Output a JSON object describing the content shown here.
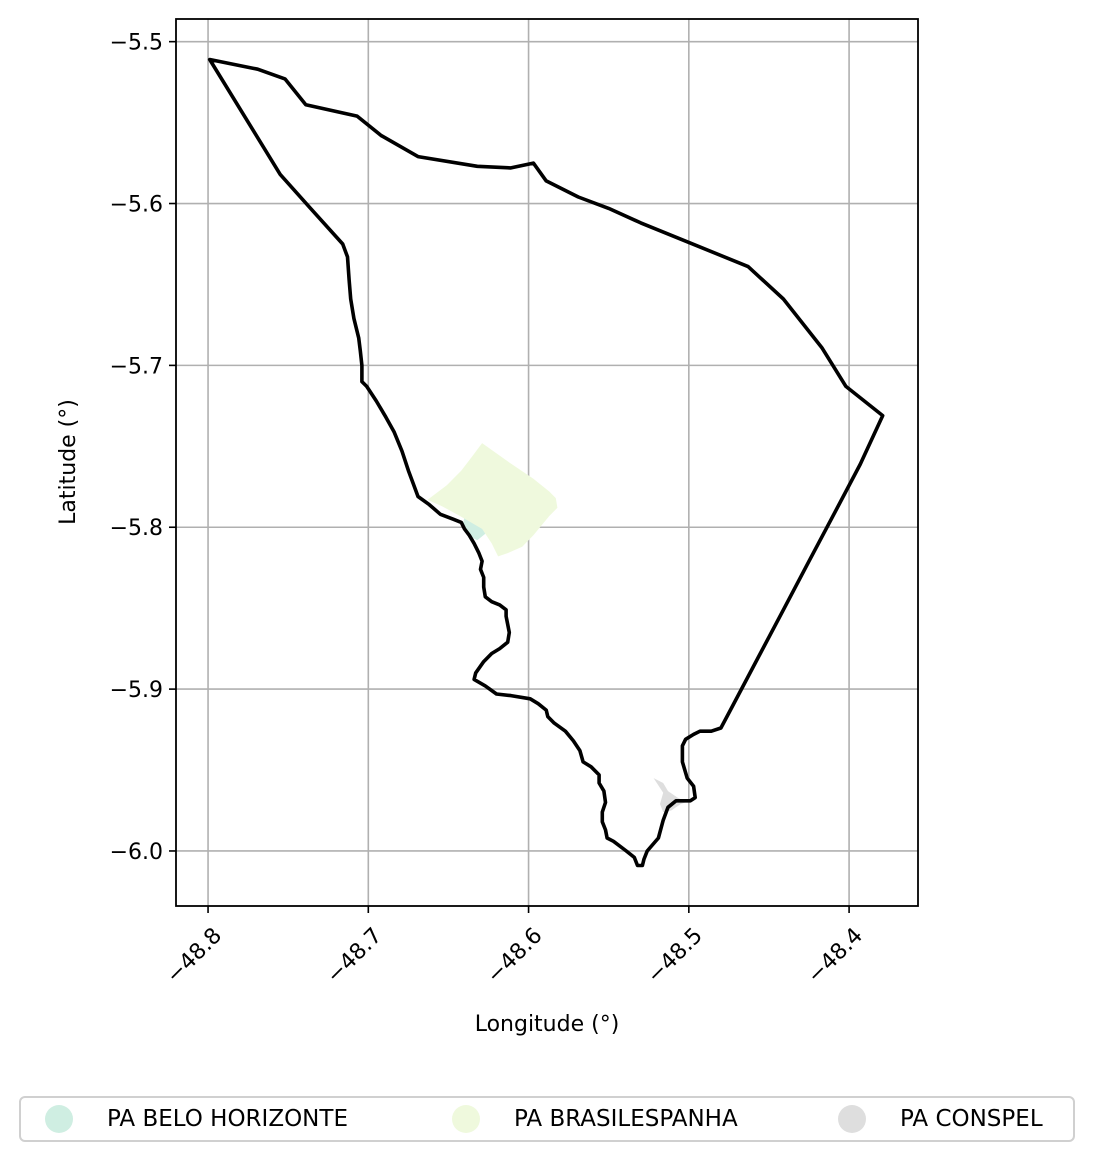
{
  "chart_data": {
    "type": "map",
    "xlabel": "Longitude (°)",
    "ylabel": "Latitude (°)",
    "xlim": [
      -48.82,
      -48.357
    ],
    "ylim": [
      -6.034,
      -5.486
    ],
    "xticks": [
      {
        "value": -48.8,
        "label": "−48.8"
      },
      {
        "value": -48.7,
        "label": "−48.7"
      },
      {
        "value": -48.6,
        "label": "−48.6"
      },
      {
        "value": -48.5,
        "label": "−48.5"
      },
      {
        "value": -48.4,
        "label": "−48.4"
      }
    ],
    "yticks": [
      {
        "value": -5.5,
        "label": "−5.5"
      },
      {
        "value": -5.6,
        "label": "−5.6"
      },
      {
        "value": -5.7,
        "label": "−5.7"
      },
      {
        "value": -5.8,
        "label": "−5.8"
      },
      {
        "value": -5.9,
        "label": "−5.9"
      },
      {
        "value": -6.0,
        "label": "−6.0"
      }
    ],
    "grid": true,
    "legend_position": "bottom",
    "boundary": {
      "color": "#000000",
      "coords": [
        [
          -48.799,
          -5.511
        ],
        [
          -48.769,
          -5.517
        ],
        [
          -48.752,
          -5.523
        ],
        [
          -48.739,
          -5.539
        ],
        [
          -48.707,
          -5.546
        ],
        [
          -48.692,
          -5.558
        ],
        [
          -48.669,
          -5.571
        ],
        [
          -48.632,
          -5.577
        ],
        [
          -48.611,
          -5.578
        ],
        [
          -48.597,
          -5.575
        ],
        [
          -48.589,
          -5.586
        ],
        [
          -48.569,
          -5.596
        ],
        [
          -48.55,
          -5.603
        ],
        [
          -48.53,
          -5.612
        ],
        [
          -48.5,
          -5.624
        ],
        [
          -48.463,
          -5.639
        ],
        [
          -48.441,
          -5.659
        ],
        [
          -48.417,
          -5.689
        ],
        [
          -48.402,
          -5.713
        ],
        [
          -48.379,
          -5.731
        ],
        [
          -48.393,
          -5.761
        ],
        [
          -48.409,
          -5.791
        ],
        [
          -48.425,
          -5.821
        ],
        [
          -48.441,
          -5.851
        ],
        [
          -48.457,
          -5.881
        ],
        [
          -48.473,
          -5.911
        ],
        [
          -48.48,
          -5.924
        ],
        [
          -48.486,
          -5.926
        ],
        [
          -48.493,
          -5.926
        ],
        [
          -48.497,
          -5.928
        ],
        [
          -48.502,
          -5.931
        ],
        [
          -48.504,
          -5.935
        ],
        [
          -48.504,
          -5.945
        ],
        [
          -48.501,
          -5.955
        ],
        [
          -48.497,
          -5.96
        ],
        [
          -48.496,
          -5.967
        ],
        [
          -48.499,
          -5.969
        ],
        [
          -48.508,
          -5.969
        ],
        [
          -48.513,
          -5.973
        ],
        [
          -48.516,
          -5.981
        ],
        [
          -48.519,
          -5.992
        ],
        [
          -48.526,
          -6.0
        ],
        [
          -48.528,
          -6.005
        ],
        [
          -48.529,
          -6.009
        ],
        [
          -48.532,
          -6.009
        ],
        [
          -48.534,
          -6.004
        ],
        [
          -48.539,
          -6.0
        ],
        [
          -48.547,
          -5.994
        ],
        [
          -48.551,
          -5.992
        ],
        [
          -48.552,
          -5.987
        ],
        [
          -48.554,
          -5.982
        ],
        [
          -48.554,
          -5.976
        ],
        [
          -48.552,
          -5.97
        ],
        [
          -48.553,
          -5.963
        ],
        [
          -48.556,
          -5.958
        ],
        [
          -48.556,
          -5.953
        ],
        [
          -48.561,
          -5.948
        ],
        [
          -48.566,
          -5.945
        ],
        [
          -48.568,
          -5.938
        ],
        [
          -48.572,
          -5.932
        ],
        [
          -48.577,
          -5.926
        ],
        [
          -48.584,
          -5.921
        ],
        [
          -48.588,
          -5.917
        ],
        [
          -48.589,
          -5.913
        ],
        [
          -48.594,
          -5.909
        ],
        [
          -48.599,
          -5.906
        ],
        [
          -48.611,
          -5.904
        ],
        [
          -48.62,
          -5.903
        ],
        [
          -48.627,
          -5.898
        ],
        [
          -48.634,
          -5.894
        ],
        [
          -48.633,
          -5.89
        ],
        [
          -48.628,
          -5.883
        ],
        [
          -48.623,
          -5.878
        ],
        [
          -48.618,
          -5.875
        ],
        [
          -48.613,
          -5.871
        ],
        [
          -48.612,
          -5.865
        ],
        [
          -48.613,
          -5.86
        ],
        [
          -48.614,
          -5.855
        ],
        [
          -48.614,
          -5.851
        ],
        [
          -48.618,
          -5.848
        ],
        [
          -48.623,
          -5.846
        ],
        [
          -48.627,
          -5.843
        ],
        [
          -48.628,
          -5.837
        ],
        [
          -48.628,
          -5.831
        ],
        [
          -48.63,
          -5.826
        ],
        [
          -48.629,
          -5.821
        ],
        [
          -48.631,
          -5.816
        ],
        [
          -48.634,
          -5.81
        ],
        [
          -48.637,
          -5.805
        ],
        [
          -48.64,
          -5.801
        ],
        [
          -48.642,
          -5.797
        ],
        [
          -48.647,
          -5.795
        ],
        [
          -48.655,
          -5.792
        ],
        [
          -48.662,
          -5.786
        ],
        [
          -48.669,
          -5.781
        ],
        [
          -48.672,
          -5.773
        ],
        [
          -48.675,
          -5.765
        ],
        [
          -48.679,
          -5.753
        ],
        [
          -48.684,
          -5.741
        ],
        [
          -48.689,
          -5.732
        ],
        [
          -48.695,
          -5.722
        ],
        [
          -48.701,
          -5.713
        ],
        [
          -48.704,
          -5.71
        ],
        [
          -48.704,
          -5.7
        ],
        [
          -48.705,
          -5.691
        ],
        [
          -48.706,
          -5.683
        ],
        [
          -48.709,
          -5.671
        ],
        [
          -48.711,
          -5.659
        ],
        [
          -48.712,
          -5.647
        ],
        [
          -48.713,
          -5.633
        ],
        [
          -48.716,
          -5.625
        ],
        [
          -48.736,
          -5.603
        ],
        [
          -48.755,
          -5.582
        ],
        [
          -48.799,
          -5.511
        ]
      ]
    },
    "areas": [
      {
        "name": "PA BELO HORIZONTE",
        "color": "#cfeee2",
        "coords": [
          [
            -48.64,
            -5.793
          ],
          [
            -48.635,
            -5.792
          ],
          [
            -48.63,
            -5.798
          ],
          [
            -48.627,
            -5.804
          ],
          [
            -48.632,
            -5.808
          ],
          [
            -48.638,
            -5.805
          ],
          [
            -48.641,
            -5.799
          ]
        ]
      },
      {
        "name": "PA BRASILESPANHA",
        "color": "#eff9dd",
        "coords": [
          [
            -48.629,
            -5.748
          ],
          [
            -48.612,
            -5.76
          ],
          [
            -48.597,
            -5.77
          ],
          [
            -48.587,
            -5.778
          ],
          [
            -48.583,
            -5.782
          ],
          [
            -48.582,
            -5.788
          ],
          [
            -48.587,
            -5.793
          ],
          [
            -48.597,
            -5.805
          ],
          [
            -48.604,
            -5.812
          ],
          [
            -48.613,
            -5.816
          ],
          [
            -48.619,
            -5.818
          ],
          [
            -48.623,
            -5.81
          ],
          [
            -48.629,
            -5.801
          ],
          [
            -48.643,
            -5.793
          ],
          [
            -48.654,
            -5.787
          ],
          [
            -48.663,
            -5.783
          ],
          [
            -48.651,
            -5.774
          ],
          [
            -48.642,
            -5.765
          ],
          [
            -48.635,
            -5.756
          ]
        ]
      },
      {
        "name": "PA CONSPEL",
        "color": "#dedede",
        "coords": [
          [
            -48.522,
            -5.955
          ],
          [
            -48.516,
            -5.958
          ],
          [
            -48.513,
            -5.963
          ],
          [
            -48.507,
            -5.967
          ],
          [
            -48.503,
            -5.969
          ],
          [
            -48.499,
            -5.969
          ],
          [
            -48.505,
            -5.971
          ],
          [
            -48.511,
            -5.975
          ],
          [
            -48.516,
            -5.976
          ],
          [
            -48.518,
            -5.971
          ],
          [
            -48.516,
            -5.964
          ]
        ]
      }
    ],
    "legend": [
      {
        "label": "PA BELO HORIZONTE",
        "color": "#cfeee2"
      },
      {
        "label": "PA BRASILESPANHA",
        "color": "#eff9dd"
      },
      {
        "label": "PA CONSPEL",
        "color": "#dedede"
      }
    ]
  }
}
